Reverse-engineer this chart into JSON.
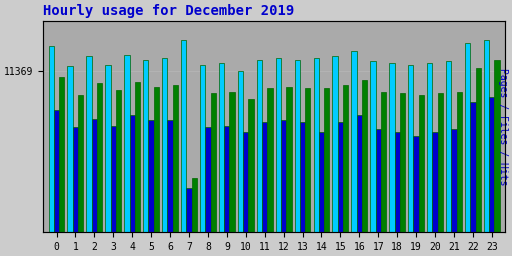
{
  "title": "Hourly usage for December 2019",
  "ylabel_right": "Pages / Files / Hits",
  "hours": [
    0,
    1,
    2,
    3,
    4,
    5,
    6,
    7,
    8,
    9,
    10,
    11,
    12,
    13,
    14,
    15,
    16,
    17,
    18,
    19,
    20,
    21,
    22,
    23
  ],
  "pages": [
    9200,
    8100,
    8800,
    8400,
    8900,
    8600,
    8700,
    3200,
    8200,
    8300,
    7900,
    8500,
    8600,
    8500,
    8500,
    8700,
    9000,
    8300,
    8200,
    8100,
    8200,
    8300,
    9700,
    10200
  ],
  "files": [
    7200,
    6200,
    6700,
    6300,
    6900,
    6600,
    6600,
    2600,
    6200,
    6300,
    5900,
    6500,
    6600,
    6500,
    5900,
    6500,
    6900,
    6100,
    5900,
    5700,
    5900,
    6100,
    7700,
    8000
  ],
  "hits": [
    11000,
    9800,
    10400,
    9900,
    10500,
    10200,
    10300,
    11369,
    9900,
    10000,
    9500,
    10200,
    10300,
    10200,
    10300,
    10400,
    10700,
    10100,
    10000,
    9900,
    10000,
    10100,
    11200,
    11369
  ],
  "pages_color": "#008000",
  "files_color": "#0000cc",
  "hits_color": "#00ccff",
  "bg_color": "#cccccc",
  "plot_bg_color": "#aaaaaa",
  "title_color": "#0000cc",
  "ylabel_color": "#0000cc",
  "border_color": "#006600",
  "ytick_label": "11369",
  "ylim": [
    0,
    12500
  ],
  "bar_width": 0.28
}
